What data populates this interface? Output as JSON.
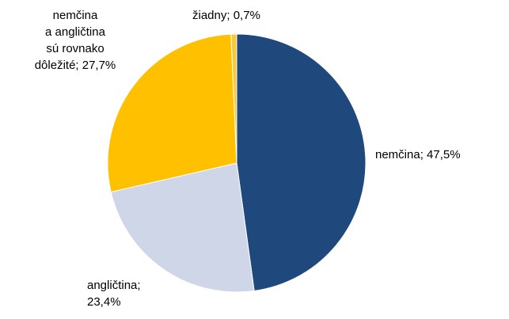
{
  "chart_data": {
    "type": "pie",
    "values": [
      47.5,
      23.4,
      27.7,
      0.7
    ],
    "value_labels": [
      "nemčina; 47,5%",
      "angličtina;\n23,4%",
      "nemčina\na angličtina\nsú rovnako\ndôležité; 27,7%",
      "žiadny; 0,7%"
    ],
    "colors": [
      "#1f497d",
      "#ced6e8",
      "#ffc000",
      "#f7c936"
    ]
  }
}
